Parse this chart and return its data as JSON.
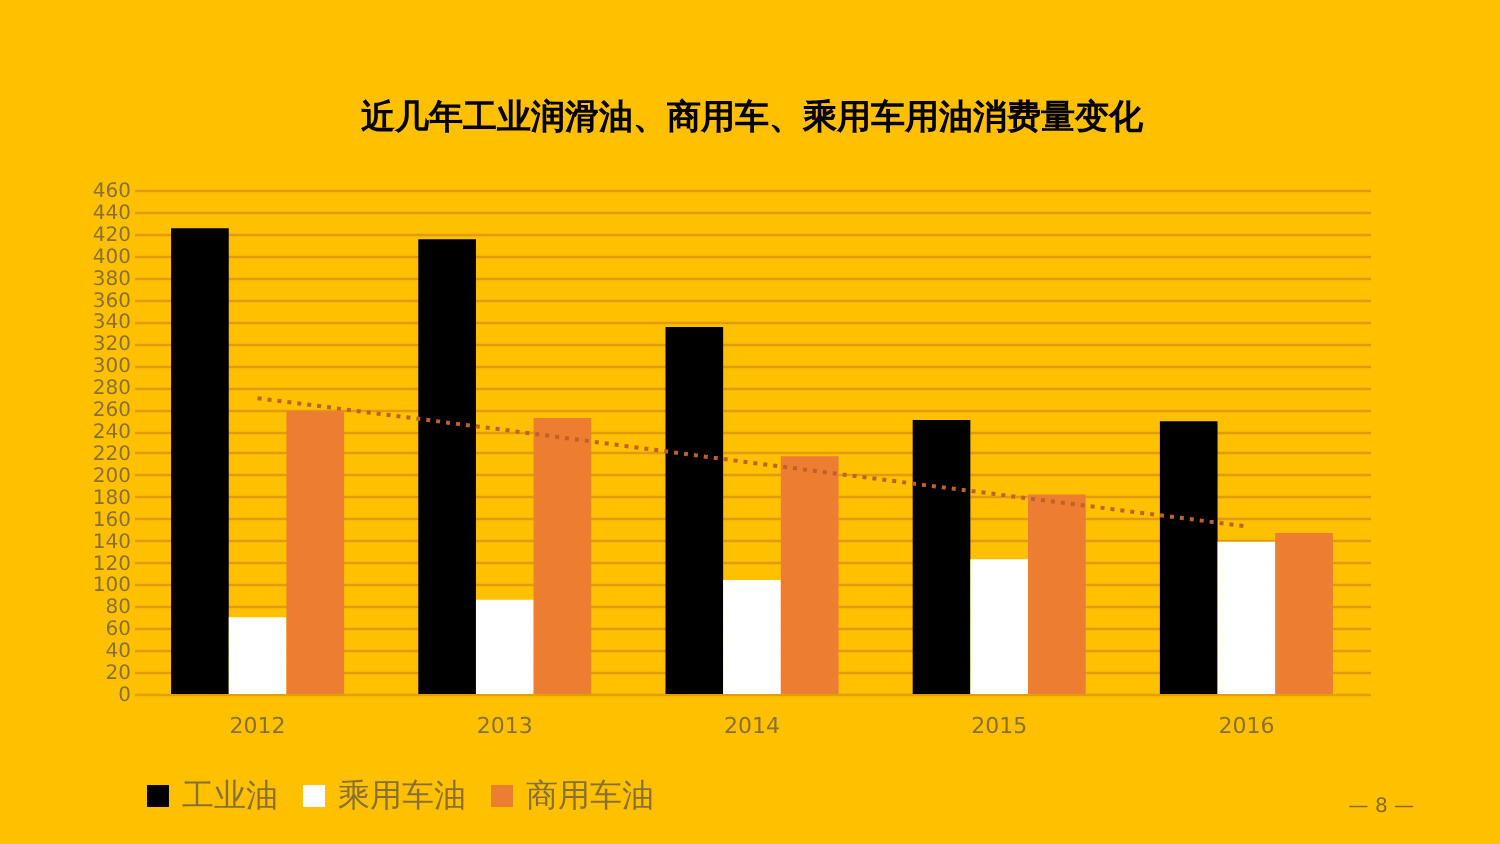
{
  "chart_data": {
    "type": "bar",
    "title": "近几年工业润滑油、商用车、乘用车用油消费量变化",
    "categories": [
      "2012",
      "2013",
      "2014",
      "2015",
      "2016"
    ],
    "series": [
      {
        "name": "工业油",
        "color": "#000000",
        "values": [
          425,
          415,
          335,
          250,
          249
        ]
      },
      {
        "name": "乘用车油",
        "color": "#ffffff",
        "values": [
          70,
          86,
          104,
          123,
          139
        ]
      },
      {
        "name": "商用车油",
        "color": "#ed7d31",
        "values": [
          258,
          252,
          217,
          182,
          147
        ]
      },
      {
        "type": "line",
        "line_style": "dotted",
        "color": "#c0602a",
        "values": [
          270,
          241,
          211,
          182,
          153
        ]
      }
    ],
    "ylim": [
      0,
      460
    ],
    "yticks": [
      0,
      20,
      40,
      60,
      80,
      100,
      120,
      140,
      160,
      180,
      200,
      220,
      240,
      260,
      280,
      300,
      320,
      340,
      360,
      380,
      400,
      420,
      440,
      460
    ],
    "grid": "y",
    "legend": "bottom",
    "annotations": [
      "— 8 —"
    ]
  }
}
